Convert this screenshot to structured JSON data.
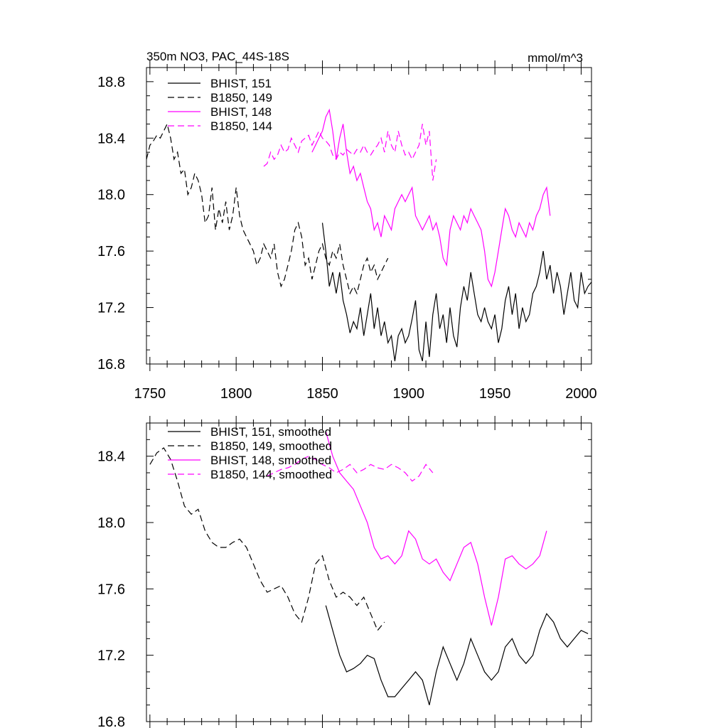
{
  "chart_data": [
    {
      "type": "line",
      "title": "350m NO3, PAC_44S-18S",
      "units": "mmol/m^3",
      "xlim": [
        1748,
        2006
      ],
      "ylim": [
        16.8,
        18.9
      ],
      "xticks": [
        1750,
        1800,
        1850,
        1900,
        1950,
        2000
      ],
      "yticks": [
        16.8,
        17.2,
        17.6,
        18.0,
        18.4,
        18.8
      ],
      "ytick_labels": [
        "16.8",
        "17.2",
        "17.6",
        "18.0",
        "18.4",
        "18.8"
      ],
      "xtick_labels": [
        "1750",
        "1800",
        "1850",
        "1900",
        "1950",
        "2000"
      ],
      "legend_position": "top-left",
      "series": [
        {
          "name": "BHIST, 151",
          "color": "#000000",
          "style": "solid",
          "x": [
            1850,
            1852,
            1854,
            1856,
            1858,
            1860,
            1862,
            1864,
            1866,
            1868,
            1870,
            1872,
            1874,
            1876,
            1878,
            1880,
            1882,
            1884,
            1886,
            1888,
            1890,
            1892,
            1894,
            1896,
            1898,
            1900,
            1902,
            1904,
            1906,
            1908,
            1910,
            1912,
            1914,
            1916,
            1918,
            1920,
            1922,
            1924,
            1926,
            1928,
            1930,
            1932,
            1934,
            1936,
            1938,
            1940,
            1942,
            1944,
            1946,
            1948,
            1950,
            1952,
            1954,
            1956,
            1958,
            1960,
            1962,
            1964,
            1966,
            1968,
            1970,
            1972,
            1974,
            1976,
            1978,
            1980,
            1982,
            1984,
            1986,
            1988,
            1990,
            1992,
            1994,
            1996,
            1998,
            2000,
            2002,
            2004,
            2006
          ],
          "values": [
            17.8,
            17.6,
            17.35,
            17.45,
            17.3,
            17.45,
            17.25,
            17.15,
            17.02,
            17.1,
            17.05,
            17.2,
            17.0,
            17.15,
            17.3,
            17.05,
            17.2,
            17.0,
            17.1,
            16.95,
            17.0,
            16.82,
            17.0,
            17.05,
            16.95,
            17.0,
            17.12,
            17.25,
            16.9,
            16.82,
            17.1,
            16.85,
            17.15,
            17.3,
            17.05,
            17.15,
            16.95,
            17.2,
            17.0,
            16.92,
            17.2,
            17.35,
            17.25,
            17.45,
            17.3,
            17.15,
            17.1,
            17.2,
            17.1,
            17.05,
            17.15,
            16.95,
            17.05,
            17.25,
            17.35,
            17.15,
            17.3,
            17.05,
            17.2,
            17.1,
            17.15,
            17.3,
            17.35,
            17.45,
            17.6,
            17.4,
            17.5,
            17.3,
            17.45,
            17.35,
            17.15,
            17.3,
            17.45,
            17.25,
            17.2,
            17.45,
            17.3,
            17.35,
            17.38
          ]
        },
        {
          "name": "B1850, 149",
          "color": "#000000",
          "style": "dashed",
          "x": [
            1748,
            1750,
            1752,
            1754,
            1756,
            1758,
            1760,
            1762,
            1764,
            1766,
            1768,
            1770,
            1772,
            1774,
            1776,
            1778,
            1780,
            1782,
            1784,
            1786,
            1788,
            1790,
            1792,
            1794,
            1796,
            1798,
            1800,
            1802,
            1804,
            1806,
            1808,
            1810,
            1812,
            1814,
            1816,
            1818,
            1820,
            1822,
            1824,
            1826,
            1828,
            1830,
            1832,
            1834,
            1836,
            1838,
            1840,
            1842,
            1844,
            1846,
            1848,
            1850,
            1852,
            1854,
            1856,
            1858,
            1860,
            1862,
            1864,
            1866,
            1868,
            1870,
            1872,
            1874,
            1876,
            1878,
            1880,
            1882,
            1884,
            1886,
            1888
          ],
          "values": [
            18.25,
            18.35,
            18.38,
            18.42,
            18.4,
            18.45,
            18.5,
            18.4,
            18.25,
            18.3,
            18.15,
            18.18,
            18.0,
            18.05,
            18.15,
            18.1,
            18.0,
            17.8,
            17.85,
            18.05,
            17.75,
            17.9,
            17.8,
            17.95,
            17.75,
            17.85,
            18.05,
            17.85,
            17.75,
            17.7,
            17.65,
            17.6,
            17.5,
            17.55,
            17.65,
            17.6,
            17.55,
            17.65,
            17.45,
            17.35,
            17.4,
            17.5,
            17.6,
            17.75,
            17.8,
            17.7,
            17.5,
            17.55,
            17.4,
            17.5,
            17.6,
            17.65,
            17.55,
            17.5,
            17.6,
            17.55,
            17.65,
            17.5,
            17.4,
            17.3,
            17.35,
            17.3,
            17.4,
            17.5,
            17.55,
            17.45,
            17.5,
            17.4,
            17.45,
            17.5,
            17.55
          ]
        },
        {
          "name": "BHIST, 148",
          "color": "#ff00ff",
          "style": "solid",
          "x": [
            1844,
            1846,
            1848,
            1850,
            1852,
            1854,
            1856,
            1858,
            1860,
            1862,
            1864,
            1866,
            1868,
            1870,
            1872,
            1874,
            1876,
            1878,
            1880,
            1882,
            1884,
            1886,
            1888,
            1890,
            1892,
            1894,
            1896,
            1898,
            1900,
            1902,
            1904,
            1906,
            1908,
            1910,
            1912,
            1914,
            1916,
            1918,
            1920,
            1922,
            1924,
            1926,
            1928,
            1930,
            1932,
            1934,
            1936,
            1938,
            1940,
            1942,
            1944,
            1946,
            1948,
            1950,
            1952,
            1954,
            1956,
            1958,
            1960,
            1962,
            1964,
            1966,
            1968,
            1970,
            1972,
            1974,
            1976,
            1978,
            1980,
            1982
          ],
          "values": [
            18.3,
            18.35,
            18.4,
            18.45,
            18.55,
            18.6,
            18.45,
            18.25,
            18.4,
            18.5,
            18.3,
            18.15,
            18.2,
            18.1,
            18.15,
            18.05,
            17.95,
            17.9,
            17.75,
            17.8,
            17.7,
            17.85,
            17.8,
            17.75,
            17.9,
            17.95,
            18.0,
            17.95,
            18.0,
            18.05,
            17.85,
            17.8,
            17.75,
            17.8,
            17.85,
            17.75,
            17.8,
            17.7,
            17.55,
            17.5,
            17.75,
            17.85,
            17.8,
            17.75,
            17.85,
            17.8,
            17.9,
            17.85,
            17.8,
            17.75,
            17.6,
            17.4,
            17.35,
            17.45,
            17.6,
            17.75,
            17.9,
            17.85,
            17.75,
            17.7,
            17.8,
            17.75,
            17.7,
            17.8,
            17.75,
            17.85,
            17.9,
            18.0,
            18.05,
            17.85
          ]
        },
        {
          "name": "B1850, 144",
          "color": "#ff00ff",
          "style": "dashed",
          "x": [
            1816,
            1818,
            1820,
            1822,
            1824,
            1826,
            1828,
            1830,
            1832,
            1834,
            1836,
            1838,
            1840,
            1842,
            1844,
            1846,
            1848,
            1850,
            1852,
            1854,
            1856,
            1858,
            1860,
            1862,
            1864,
            1866,
            1868,
            1870,
            1872,
            1874,
            1876,
            1878,
            1880,
            1882,
            1884,
            1886,
            1888,
            1890,
            1892,
            1894,
            1896,
            1898,
            1900,
            1902,
            1904,
            1906,
            1908,
            1910,
            1912,
            1914,
            1916
          ],
          "values": [
            18.2,
            18.22,
            18.3,
            18.25,
            18.28,
            18.35,
            18.3,
            18.32,
            18.4,
            18.35,
            18.3,
            18.38,
            18.4,
            18.42,
            18.35,
            18.4,
            18.45,
            18.4,
            18.38,
            18.35,
            18.28,
            18.25,
            18.3,
            18.28,
            18.32,
            18.3,
            18.28,
            18.32,
            18.3,
            18.35,
            18.3,
            18.28,
            18.32,
            18.35,
            18.4,
            18.3,
            18.45,
            18.35,
            18.3,
            18.45,
            18.35,
            18.28,
            18.3,
            18.25,
            18.3,
            18.35,
            18.5,
            18.35,
            18.45,
            18.1,
            18.25
          ]
        }
      ]
    },
    {
      "type": "line",
      "title": "",
      "xlim": [
        1748,
        2006
      ],
      "ylim": [
        16.8,
        18.6
      ],
      "xticks": [
        1750,
        1800,
        1850,
        1900,
        1950,
        2000
      ],
      "yticks": [
        16.8,
        17.2,
        17.6,
        18.0,
        18.4
      ],
      "ytick_labels": [
        "16.8",
        "17.2",
        "17.6",
        "18.0",
        "18.4"
      ],
      "legend_position": "top-left",
      "series": [
        {
          "name": "BHIST, 151, smoothed",
          "color": "#000000",
          "style": "solid",
          "x": [
            1852,
            1856,
            1860,
            1864,
            1868,
            1872,
            1876,
            1880,
            1884,
            1888,
            1892,
            1896,
            1900,
            1904,
            1908,
            1912,
            1916,
            1920,
            1924,
            1928,
            1932,
            1936,
            1940,
            1944,
            1948,
            1952,
            1956,
            1960,
            1964,
            1968,
            1972,
            1976,
            1980,
            1984,
            1988,
            1992,
            1996,
            2000,
            2004
          ],
          "values": [
            17.5,
            17.35,
            17.2,
            17.1,
            17.12,
            17.15,
            17.2,
            17.18,
            17.05,
            16.95,
            16.95,
            17.0,
            17.05,
            17.1,
            17.05,
            16.9,
            17.1,
            17.25,
            17.15,
            17.05,
            17.15,
            17.3,
            17.2,
            17.1,
            17.05,
            17.1,
            17.25,
            17.3,
            17.2,
            17.15,
            17.2,
            17.35,
            17.45,
            17.4,
            17.3,
            17.25,
            17.3,
            17.35,
            17.33
          ]
        },
        {
          "name": "B1850, 149, smoothed",
          "color": "#000000",
          "style": "dashed",
          "x": [
            1750,
            1754,
            1758,
            1762,
            1766,
            1770,
            1774,
            1778,
            1782,
            1786,
            1790,
            1794,
            1798,
            1802,
            1806,
            1810,
            1814,
            1818,
            1822,
            1826,
            1830,
            1834,
            1838,
            1842,
            1846,
            1850,
            1854,
            1858,
            1862,
            1866,
            1870,
            1874,
            1878,
            1882,
            1886
          ],
          "values": [
            18.35,
            18.42,
            18.45,
            18.38,
            18.25,
            18.1,
            18.05,
            18.08,
            17.95,
            17.88,
            17.85,
            17.85,
            17.88,
            17.9,
            17.85,
            17.75,
            17.65,
            17.58,
            17.6,
            17.62,
            17.55,
            17.45,
            17.4,
            17.55,
            17.75,
            17.8,
            17.65,
            17.55,
            17.58,
            17.55,
            17.5,
            17.55,
            17.45,
            17.35,
            17.4
          ]
        },
        {
          "name": "BHIST, 148, smoothed",
          "color": "#ff00ff",
          "style": "solid",
          "x": [
            1852,
            1856,
            1860,
            1864,
            1868,
            1872,
            1876,
            1880,
            1884,
            1888,
            1892,
            1896,
            1900,
            1904,
            1908,
            1912,
            1916,
            1920,
            1924,
            1928,
            1932,
            1936,
            1940,
            1944,
            1948,
            1952,
            1956,
            1960,
            1964,
            1968,
            1972,
            1976,
            1980
          ],
          "values": [
            18.55,
            18.4,
            18.3,
            18.25,
            18.2,
            18.1,
            18.0,
            17.85,
            17.78,
            17.8,
            17.75,
            17.8,
            17.95,
            17.9,
            17.78,
            17.75,
            17.78,
            17.7,
            17.65,
            17.75,
            17.85,
            17.88,
            17.75,
            17.55,
            17.38,
            17.55,
            17.78,
            17.8,
            17.75,
            17.72,
            17.75,
            17.8,
            17.95
          ]
        },
        {
          "name": "B1850, 144, smoothed",
          "color": "#ff00ff",
          "style": "dashed",
          "x": [
            1818,
            1822,
            1826,
            1830,
            1834,
            1838,
            1842,
            1846,
            1850,
            1854,
            1858,
            1862,
            1866,
            1870,
            1874,
            1878,
            1882,
            1886,
            1890,
            1894,
            1898,
            1902,
            1906,
            1910,
            1914
          ],
          "values": [
            18.28,
            18.3,
            18.32,
            18.33,
            18.35,
            18.38,
            18.4,
            18.38,
            18.35,
            18.33,
            18.3,
            18.32,
            18.35,
            18.3,
            18.32,
            18.35,
            18.33,
            18.32,
            18.35,
            18.33,
            18.3,
            18.25,
            18.28,
            18.35,
            18.3
          ]
        }
      ]
    }
  ]
}
